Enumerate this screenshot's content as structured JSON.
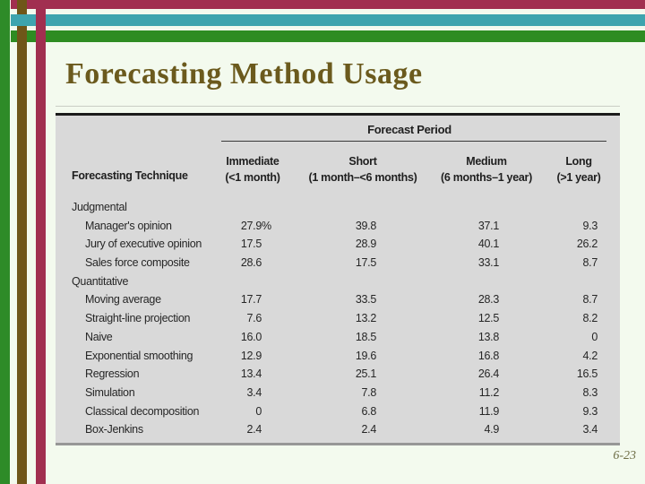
{
  "page": {
    "page_number": "6-23",
    "background_color": "#f3faee"
  },
  "stripes": {
    "crimson": "#a12f50",
    "teal": "#3ea4ae",
    "green": "#2e8c22",
    "brown": "#6f5619"
  },
  "title": {
    "text": "Forecasting Method Usage",
    "color": "#6b5a1d"
  },
  "table": {
    "background_color": "#d9d9d9",
    "period_header": "Forecast Period",
    "technique_header": "Forecasting Technique",
    "columns": [
      {
        "name": "Immediate",
        "range": "(<1 month)"
      },
      {
        "name": "Short",
        "range": "(1 month–<6 months)"
      },
      {
        "name": "Medium",
        "range": "(6 months–1 year)"
      },
      {
        "name": "Long",
        "range": "(>1 year)"
      }
    ],
    "rows": [
      {
        "label": "Judgmental",
        "category": true
      },
      {
        "label": "Manager's opinion",
        "values": [
          "27.9%",
          "39.8",
          "37.1",
          "9.3"
        ]
      },
      {
        "label": "Jury of executive opinion",
        "values": [
          "17.5",
          "28.9",
          "40.1",
          "26.2"
        ]
      },
      {
        "label": "Sales force composite",
        "values": [
          "28.6",
          "17.5",
          "33.1",
          "8.7"
        ]
      },
      {
        "label": "Quantitative",
        "category": true
      },
      {
        "label": "Moving average",
        "values": [
          "17.7",
          "33.5",
          "28.3",
          "8.7"
        ]
      },
      {
        "label": "Straight-line projection",
        "values": [
          "7.6",
          "13.2",
          "12.5",
          "8.2"
        ]
      },
      {
        "label": "Naive",
        "values": [
          "16.0",
          "18.5",
          "13.8",
          "0"
        ]
      },
      {
        "label": "Exponential smoothing",
        "values": [
          "12.9",
          "19.6",
          "16.8",
          "4.2"
        ]
      },
      {
        "label": "Regression",
        "values": [
          "13.4",
          "25.1",
          "26.4",
          "16.5"
        ]
      },
      {
        "label": "Simulation",
        "values": [
          "3.4",
          "7.8",
          "11.2",
          "8.3"
        ]
      },
      {
        "label": "Classical decomposition",
        "values": [
          "0",
          "6.8",
          "11.9",
          "9.3"
        ]
      },
      {
        "label": "Box-Jenkins",
        "values": [
          "2.4",
          "2.4",
          "4.9",
          "3.4"
        ]
      }
    ]
  }
}
